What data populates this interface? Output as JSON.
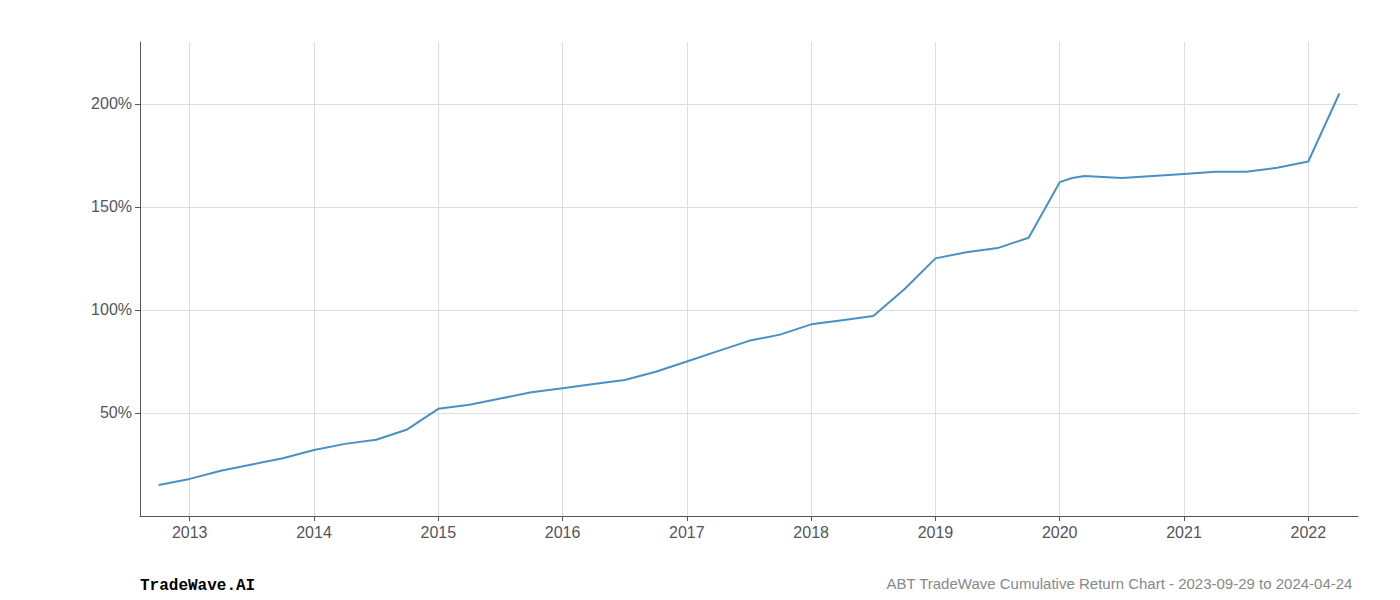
{
  "chart_data": {
    "type": "line",
    "title": "ABT TradeWave Cumulative Return Chart - 2023-09-29 to 2024-04-24",
    "annotations": [
      "TradeWave.AI"
    ],
    "x": [
      2012.75,
      2013.0,
      2013.25,
      2013.5,
      2013.75,
      2014.0,
      2014.25,
      2014.5,
      2014.75,
      2015.0,
      2015.25,
      2015.5,
      2015.75,
      2016.0,
      2016.25,
      2016.5,
      2016.75,
      2017.0,
      2017.25,
      2017.5,
      2017.75,
      2018.0,
      2018.25,
      2018.5,
      2018.75,
      2019.0,
      2019.25,
      2019.5,
      2019.75,
      2020.0,
      2020.1,
      2020.2,
      2020.5,
      2020.75,
      2021.0,
      2021.25,
      2021.5,
      2021.75,
      2022.0,
      2022.25
    ],
    "values": [
      15,
      18,
      22,
      25,
      28,
      32,
      35,
      37,
      42,
      52,
      54,
      57,
      60,
      62,
      64,
      66,
      70,
      75,
      80,
      85,
      88,
      93,
      95,
      97,
      110,
      125,
      128,
      130,
      135,
      162,
      164,
      165,
      164,
      165,
      166,
      167,
      167,
      169,
      172,
      205
    ],
    "color": "#4a90c4",
    "xlim": [
      2012.6,
      2022.4
    ],
    "xticks": [
      2013,
      2014,
      2015,
      2016,
      2017,
      2018,
      2019,
      2020,
      2021,
      2022
    ],
    "ylim": [
      0,
      230
    ],
    "yticks": [
      {
        "value": 50,
        "label": "50%"
      },
      {
        "value": 100,
        "label": "100%"
      },
      {
        "value": 150,
        "label": "150%"
      },
      {
        "value": 200,
        "label": "200%"
      }
    ],
    "grid": true
  }
}
